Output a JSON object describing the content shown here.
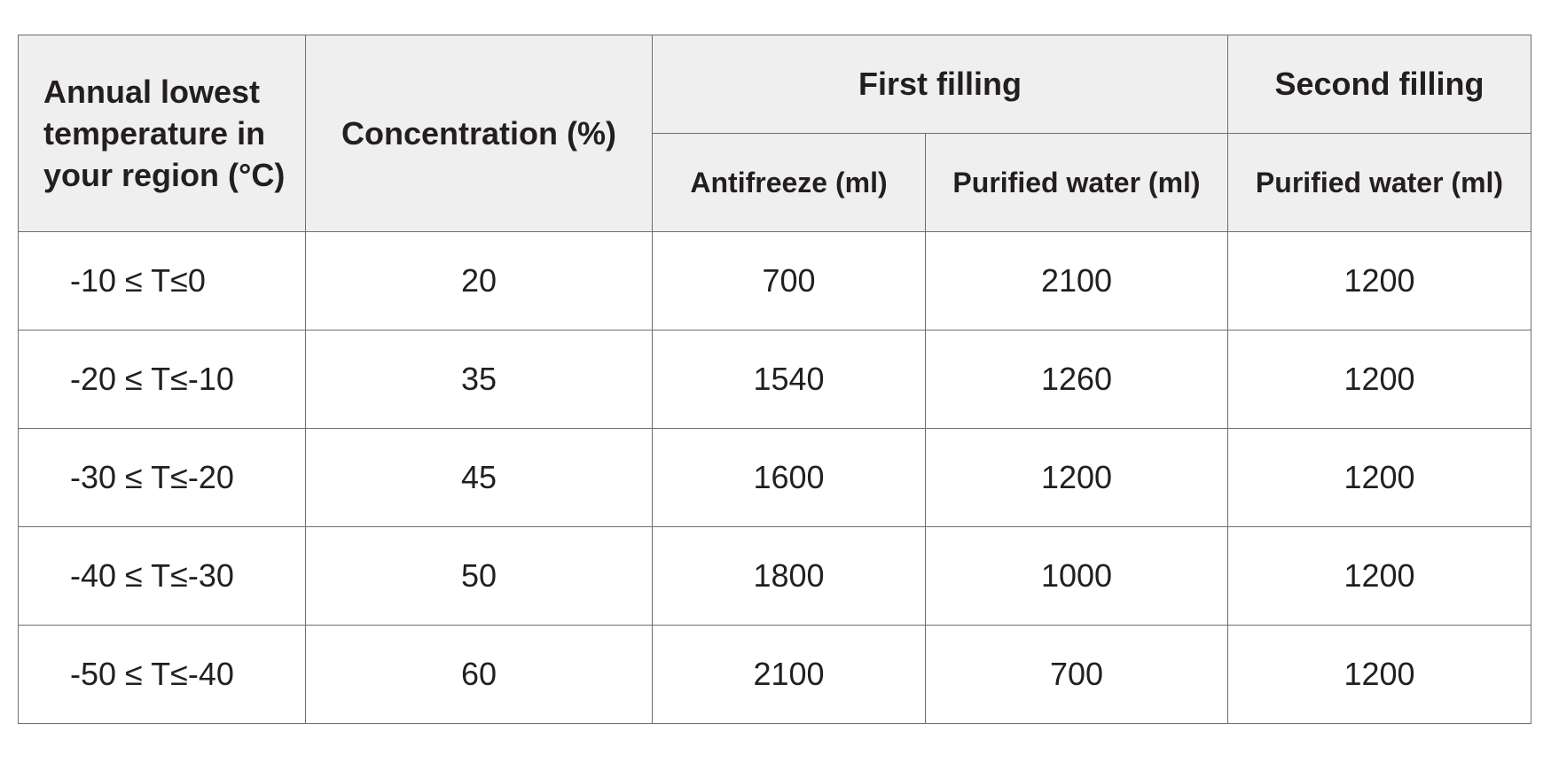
{
  "table": {
    "headers": {
      "temperature": "Annual lowest temperature in your region (°C)",
      "concentration": "Concentration (%)",
      "first_filling": "First filling",
      "second_filling": "Second filling",
      "first_antifreeze": "Antifreeze (ml)",
      "first_water": "Purified water (ml)",
      "second_water": "Purified water (ml)"
    },
    "rows": [
      {
        "temp": "-10 ≤ T≤0",
        "conc": "20",
        "antifreeze": "700",
        "water1": "2100",
        "water2": "1200"
      },
      {
        "temp": "-20 ≤ T≤-10",
        "conc": "35",
        "antifreeze": "1540",
        "water1": "1260",
        "water2": "1200"
      },
      {
        "temp": "-30 ≤ T≤-20",
        "conc": "45",
        "antifreeze": "1600",
        "water1": "1200",
        "water2": "1200"
      },
      {
        "temp": "-40 ≤ T≤-30",
        "conc": "50",
        "antifreeze": "1800",
        "water1": "1000",
        "water2": "1200"
      },
      {
        "temp": "-50 ≤ T≤-40",
        "conc": "60",
        "antifreeze": "2100",
        "water1": "700",
        "water2": "1200"
      }
    ]
  }
}
